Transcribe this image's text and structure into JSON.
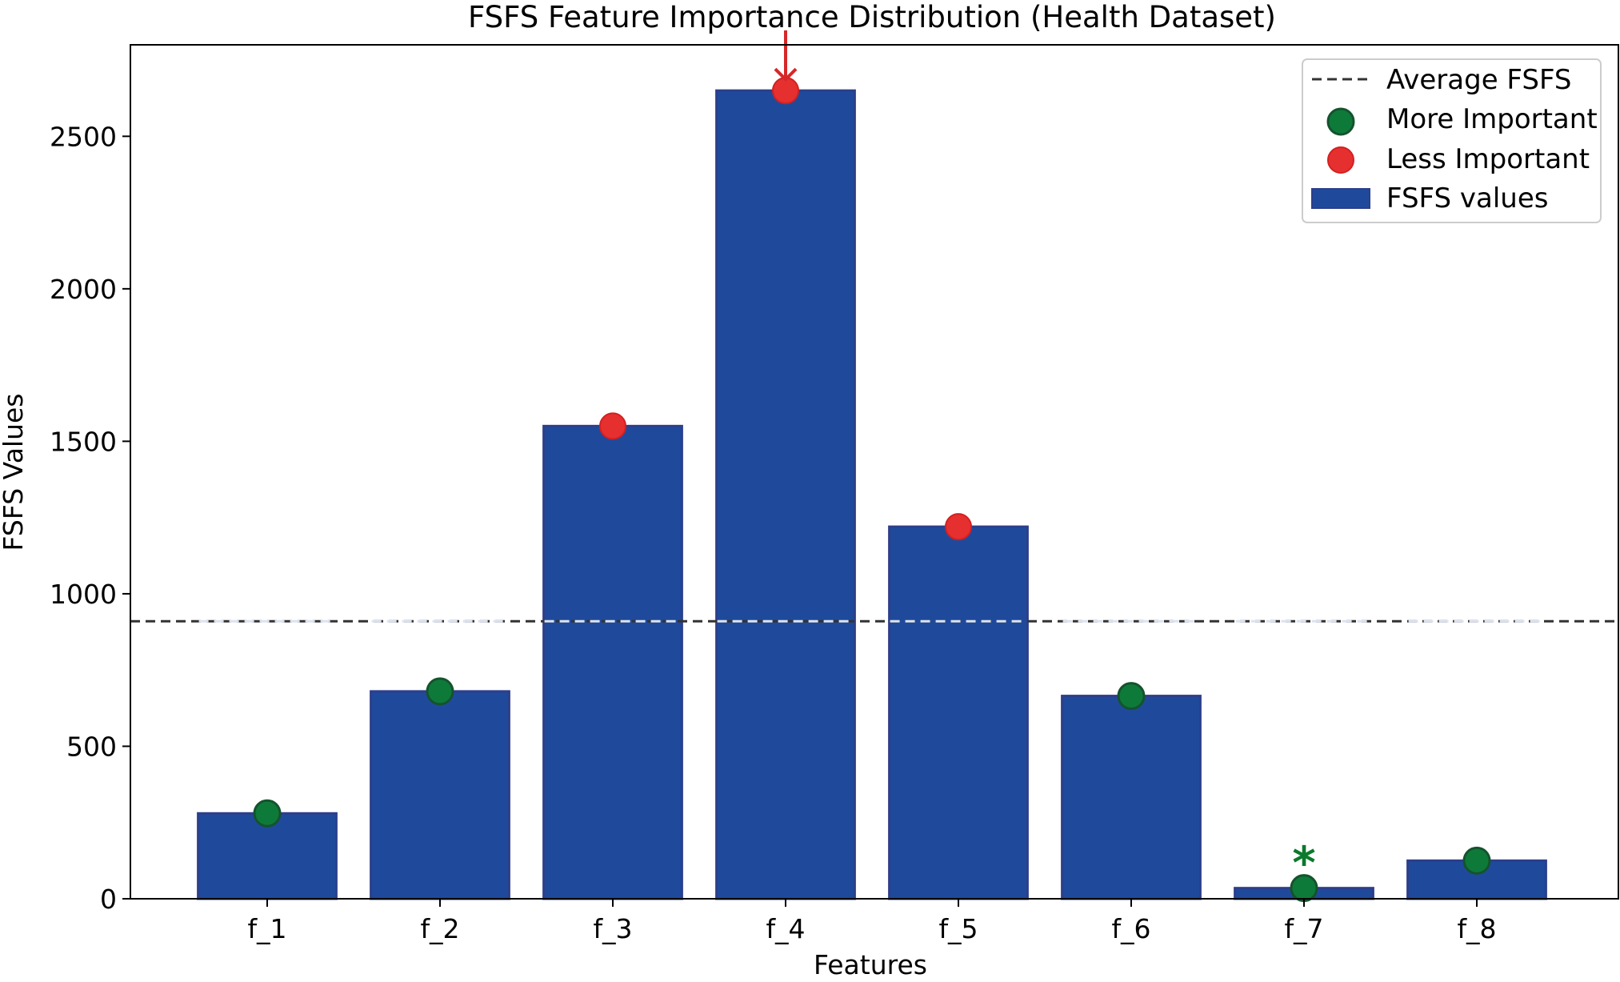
{
  "chart_data": {
    "type": "bar",
    "title": "FSFS Feature Importance Distribution (Health Dataset)",
    "xlabel": "Features",
    "ylabel": "FSFS Values",
    "categories": [
      "f_1",
      "f_2",
      "f_3",
      "f_4",
      "f_5",
      "f_6",
      "f_7",
      "f_8"
    ],
    "values": [
      280,
      680,
      1550,
      2650,
      1220,
      665,
      35,
      125
    ],
    "importance": [
      "more",
      "more",
      "less",
      "less",
      "less",
      "more",
      "more",
      "more"
    ],
    "average": 910,
    "ylim": [
      0,
      2800
    ],
    "yticks": [
      0,
      500,
      1000,
      1500,
      2000,
      2500
    ],
    "annotations": [
      {
        "category": "f_4",
        "marker": "arrow",
        "color": "#d62728"
      },
      {
        "category": "f_7",
        "marker": "*",
        "color": "#0b7a2c"
      }
    ],
    "legend": {
      "position": "top-right",
      "entries": [
        {
          "key": "average",
          "label": "Average FSFS"
        },
        {
          "key": "more",
          "label": "More Important"
        },
        {
          "key": "less",
          "label": "Less Important"
        },
        {
          "key": "bars",
          "label": "FSFS values"
        }
      ]
    },
    "colors": {
      "bar": "#1f4a9c",
      "bar_edge": "#2d3f8a",
      "more": "#0e7a3a",
      "less": "#e63030",
      "average_line": "#333333"
    }
  }
}
